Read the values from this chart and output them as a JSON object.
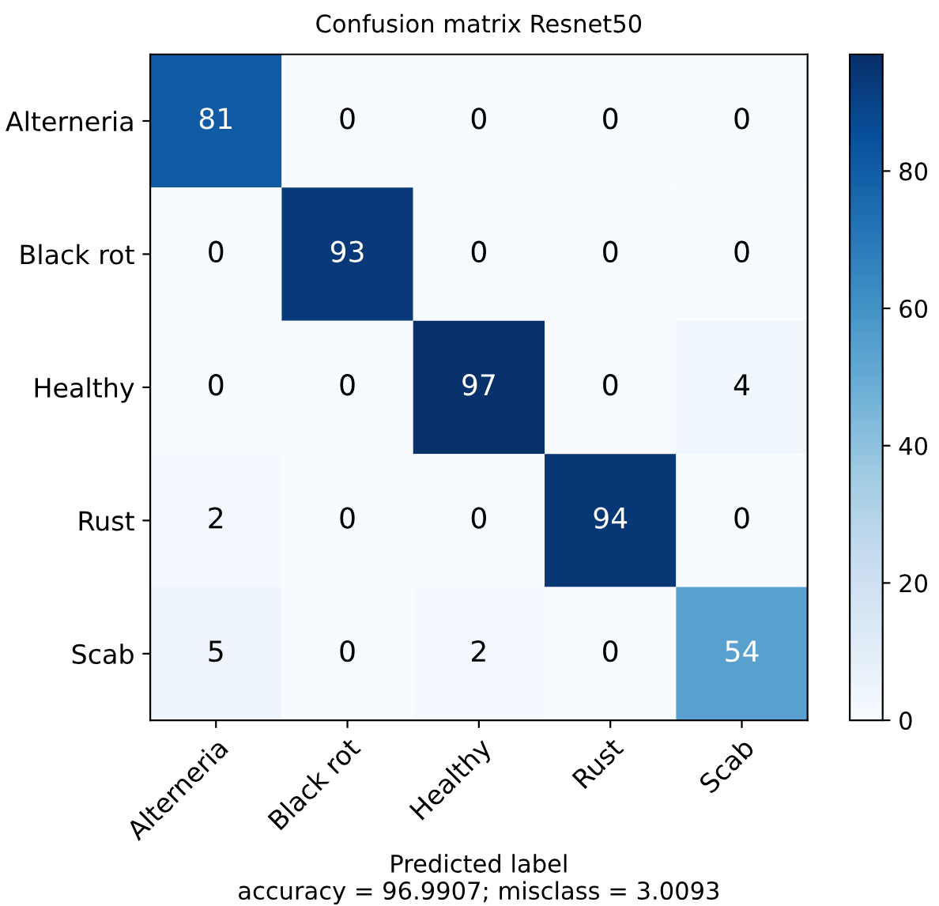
{
  "chart_data": {
    "type": "heatmap",
    "title": "Confusion matrix Resnet50",
    "xlabel": "Predicted label\naccuracy = 96.9907; misclass = 3.0093",
    "categories": [
      "Alterneria",
      "Black rot",
      "Healthy",
      "Rust",
      "Scab"
    ],
    "y_categories": [
      "Alterneria",
      "Black rot",
      "Healthy",
      "Rust",
      "Scab"
    ],
    "cells": [
      [
        81,
        0,
        0,
        0,
        0
      ],
      [
        0,
        93,
        0,
        0,
        0
      ],
      [
        0,
        0,
        97,
        0,
        4
      ],
      [
        2,
        0,
        0,
        94,
        0
      ],
      [
        5,
        0,
        2,
        0,
        54
      ]
    ],
    "clim": [
      0,
      97
    ],
    "cticks": [
      0,
      20,
      40,
      60,
      80
    ],
    "data_labels": true,
    "grid": false
  }
}
